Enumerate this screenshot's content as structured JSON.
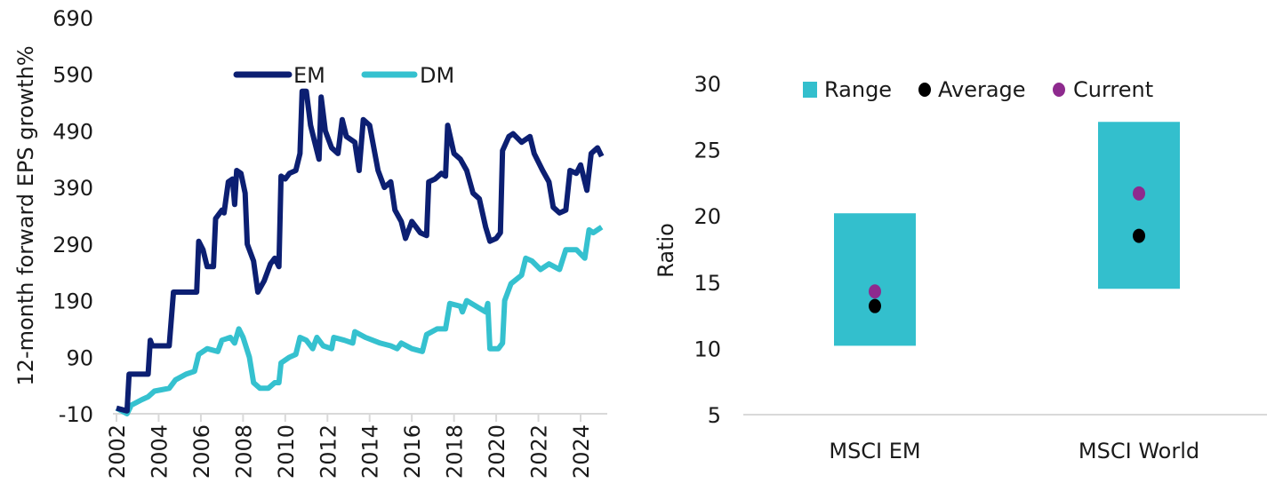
{
  "chart_data": [
    {
      "type": "line",
      "title": "",
      "xlabel": "",
      "ylabel": "12-month forward EPS growth%",
      "ylim": [
        -10,
        690
      ],
      "yticks": [
        "-10",
        "90",
        "190",
        "290",
        "390",
        "490",
        "590",
        "690"
      ],
      "xlim": [
        2002,
        2025.1
      ],
      "xticks": [
        "2002",
        "2004",
        "2006",
        "2008",
        "2010",
        "2012",
        "2014",
        "2016",
        "2018",
        "2020",
        "2022",
        "2024"
      ],
      "grid": false,
      "legend": "top-center",
      "series": [
        {
          "name": "EM",
          "color": "#0c1f72",
          "points": [
            [
              2002.0,
              0
            ],
            [
              2002.5,
              -5
            ],
            [
              2002.6,
              60
            ],
            [
              2003.5,
              60
            ],
            [
              2003.6,
              120
            ],
            [
              2003.7,
              110
            ],
            [
              2004.5,
              110
            ],
            [
              2004.7,
              205
            ],
            [
              2005.8,
              205
            ],
            [
              2005.9,
              295
            ],
            [
              2006.1,
              280
            ],
            [
              2006.3,
              250
            ],
            [
              2006.6,
              250
            ],
            [
              2006.7,
              335
            ],
            [
              2007.0,
              350
            ],
            [
              2007.1,
              345
            ],
            [
              2007.3,
              400
            ],
            [
              2007.5,
              405
            ],
            [
              2007.6,
              360
            ],
            [
              2007.7,
              420
            ],
            [
              2007.9,
              415
            ],
            [
              2008.1,
              380
            ],
            [
              2008.2,
              290
            ],
            [
              2008.5,
              260
            ],
            [
              2008.7,
              205
            ],
            [
              2009.0,
              225
            ],
            [
              2009.3,
              255
            ],
            [
              2009.5,
              265
            ],
            [
              2009.7,
              250
            ],
            [
              2009.8,
              410
            ],
            [
              2010.0,
              405
            ],
            [
              2010.2,
              415
            ],
            [
              2010.5,
              420
            ],
            [
              2010.7,
              450
            ],
            [
              2010.8,
              560
            ],
            [
              2011.0,
              560
            ],
            [
              2011.2,
              500
            ],
            [
              2011.4,
              470
            ],
            [
              2011.6,
              440
            ],
            [
              2011.7,
              550
            ],
            [
              2011.9,
              490
            ],
            [
              2012.2,
              460
            ],
            [
              2012.5,
              450
            ],
            [
              2012.7,
              510
            ],
            [
              2012.9,
              480
            ],
            [
              2013.3,
              470
            ],
            [
              2013.5,
              420
            ],
            [
              2013.7,
              510
            ],
            [
              2014.0,
              500
            ],
            [
              2014.4,
              420
            ],
            [
              2014.7,
              390
            ],
            [
              2015.0,
              400
            ],
            [
              2015.2,
              350
            ],
            [
              2015.5,
              330
            ],
            [
              2015.7,
              300
            ],
            [
              2016.0,
              330
            ],
            [
              2016.4,
              310
            ],
            [
              2016.7,
              305
            ],
            [
              2016.8,
              400
            ],
            [
              2017.1,
              405
            ],
            [
              2017.4,
              415
            ],
            [
              2017.6,
              410
            ],
            [
              2017.7,
              500
            ],
            [
              2018.0,
              450
            ],
            [
              2018.3,
              440
            ],
            [
              2018.6,
              420
            ],
            [
              2018.9,
              380
            ],
            [
              2019.2,
              370
            ],
            [
              2019.5,
              320
            ],
            [
              2019.7,
              295
            ],
            [
              2020.0,
              300
            ],
            [
              2020.2,
              310
            ],
            [
              2020.3,
              455
            ],
            [
              2020.6,
              480
            ],
            [
              2020.8,
              485
            ],
            [
              2021.2,
              470
            ],
            [
              2021.6,
              480
            ],
            [
              2021.8,
              450
            ],
            [
              2022.2,
              420
            ],
            [
              2022.5,
              400
            ],
            [
              2022.7,
              355
            ],
            [
              2023.0,
              345
            ],
            [
              2023.3,
              350
            ],
            [
              2023.5,
              420
            ],
            [
              2023.8,
              415
            ],
            [
              2024.0,
              430
            ],
            [
              2024.3,
              385
            ],
            [
              2024.5,
              450
            ],
            [
              2024.8,
              460
            ],
            [
              2025.0,
              445
            ]
          ]
        },
        {
          "name": "DM",
          "color": "#35c1cf",
          "points": [
            [
              2002.0,
              0
            ],
            [
              2002.5,
              -10
            ],
            [
              2002.7,
              5
            ],
            [
              2003.2,
              15
            ],
            [
              2003.5,
              20
            ],
            [
              2003.8,
              30
            ],
            [
              2004.5,
              35
            ],
            [
              2004.8,
              50
            ],
            [
              2005.3,
              60
            ],
            [
              2005.7,
              65
            ],
            [
              2005.9,
              95
            ],
            [
              2006.3,
              105
            ],
            [
              2006.8,
              100
            ],
            [
              2007.0,
              120
            ],
            [
              2007.4,
              125
            ],
            [
              2007.6,
              115
            ],
            [
              2007.8,
              140
            ],
            [
              2008.0,
              125
            ],
            [
              2008.3,
              90
            ],
            [
              2008.5,
              45
            ],
            [
              2008.8,
              35
            ],
            [
              2009.2,
              35
            ],
            [
              2009.5,
              45
            ],
            [
              2009.7,
              45
            ],
            [
              2009.8,
              80
            ],
            [
              2010.2,
              90
            ],
            [
              2010.5,
              95
            ],
            [
              2010.7,
              125
            ],
            [
              2011.0,
              120
            ],
            [
              2011.3,
              105
            ],
            [
              2011.5,
              125
            ],
            [
              2011.8,
              110
            ],
            [
              2012.2,
              105
            ],
            [
              2012.3,
              125
            ],
            [
              2012.8,
              120
            ],
            [
              2013.2,
              115
            ],
            [
              2013.3,
              135
            ],
            [
              2013.8,
              125
            ],
            [
              2014.5,
              115
            ],
            [
              2015.0,
              110
            ],
            [
              2015.3,
              105
            ],
            [
              2015.5,
              115
            ],
            [
              2016.0,
              105
            ],
            [
              2016.5,
              100
            ],
            [
              2016.7,
              130
            ],
            [
              2017.2,
              140
            ],
            [
              2017.6,
              140
            ],
            [
              2017.8,
              185
            ],
            [
              2018.3,
              180
            ],
            [
              2018.4,
              170
            ],
            [
              2018.6,
              190
            ],
            [
              2019.5,
              170
            ],
            [
              2019.6,
              185
            ],
            [
              2019.7,
              105
            ],
            [
              2020.1,
              105
            ],
            [
              2020.3,
              115
            ],
            [
              2020.4,
              190
            ],
            [
              2020.7,
              220
            ],
            [
              2021.2,
              235
            ],
            [
              2021.4,
              265
            ],
            [
              2021.7,
              260
            ],
            [
              2022.1,
              245
            ],
            [
              2022.5,
              255
            ],
            [
              2023.0,
              245
            ],
            [
              2023.3,
              280
            ],
            [
              2023.8,
              280
            ],
            [
              2024.2,
              265
            ],
            [
              2024.4,
              315
            ],
            [
              2024.6,
              310
            ],
            [
              2025.0,
              320
            ]
          ]
        }
      ]
    },
    {
      "type": "range-dot",
      "title": "",
      "xlabel": "",
      "ylabel": "Ratio",
      "ylim": [
        5,
        30
      ],
      "yticks": [
        "5",
        "10",
        "15",
        "20",
        "25",
        "30"
      ],
      "categories": [
        "MSCI EM",
        "MSCI World"
      ],
      "grid": false,
      "legend": "top-center",
      "legend_labels": {
        "range": "Range",
        "average": "Average",
        "current": "Current"
      },
      "colors": {
        "range": "#33bfcd",
        "average": "#000000",
        "current": "#8e2a8e"
      },
      "range": [
        [
          10.2,
          20.2
        ],
        [
          14.5,
          27.1
        ]
      ],
      "average": [
        13.2,
        18.5
      ],
      "current": [
        14.3,
        21.7
      ]
    }
  ]
}
